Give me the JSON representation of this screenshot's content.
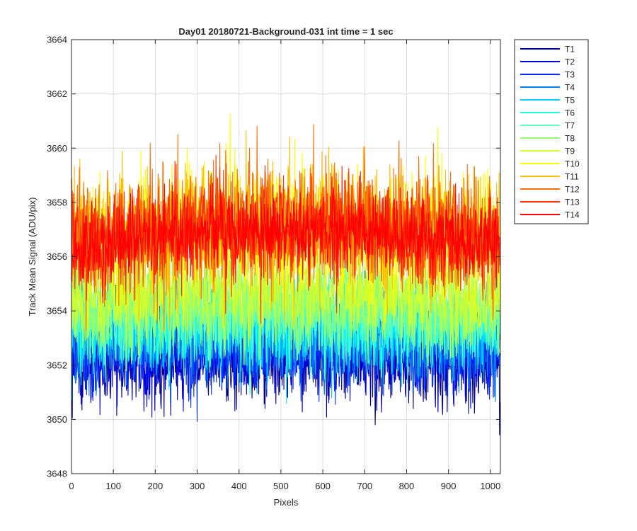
{
  "chart_data": {
    "type": "line",
    "title": "Day01 20180721-Background-031 int time = 1 sec",
    "xlabel": "Pixels",
    "ylabel": "Track Mean Signal (ADU/pix)",
    "xlim": [
      0,
      1024
    ],
    "ylim": [
      3648,
      3664
    ],
    "xticks": [
      0,
      100,
      200,
      300,
      400,
      500,
      600,
      700,
      800,
      900,
      1000
    ],
    "yticks": [
      3648,
      3650,
      3652,
      3654,
      3656,
      3658,
      3660,
      3662,
      3664
    ],
    "grid": true,
    "legend_position": "outside-top-right",
    "num_pixels": 1024,
    "series": [
      {
        "name": "T1",
        "color": "#00008f",
        "mean": 3652.2,
        "noise": 0.85
      },
      {
        "name": "T2",
        "color": "#0000df",
        "mean": 3652.4,
        "noise": 0.85
      },
      {
        "name": "T3",
        "color": "#0030ff",
        "mean": 3652.7,
        "noise": 0.85
      },
      {
        "name": "T4",
        "color": "#0080ff",
        "mean": 3653.0,
        "noise": 0.85
      },
      {
        "name": "T5",
        "color": "#00cfff",
        "mean": 3653.3,
        "noise": 0.85
      },
      {
        "name": "T6",
        "color": "#20ffdf",
        "mean": 3653.5,
        "noise": 0.85
      },
      {
        "name": "T7",
        "color": "#60ffbf",
        "mean": 3653.8,
        "noise": 0.85
      },
      {
        "name": "T8",
        "color": "#90ff70",
        "mean": 3654.1,
        "noise": 0.85
      },
      {
        "name": "T9",
        "color": "#cfff30",
        "mean": 3654.6,
        "noise": 0.9
      },
      {
        "name": "T10",
        "color": "#ffff00",
        "mean": 3656.4,
        "noise": 1.2
      },
      {
        "name": "T11",
        "color": "#ffbf00",
        "mean": 3656.5,
        "noise": 1.15
      },
      {
        "name": "T12",
        "color": "#ff7000",
        "mean": 3656.6,
        "noise": 1.1
      },
      {
        "name": "T13",
        "color": "#ff3000",
        "mean": 3656.5,
        "noise": 0.95
      },
      {
        "name": "T14",
        "color": "#ff0000",
        "mean": 3656.4,
        "noise": 0.75
      }
    ]
  }
}
